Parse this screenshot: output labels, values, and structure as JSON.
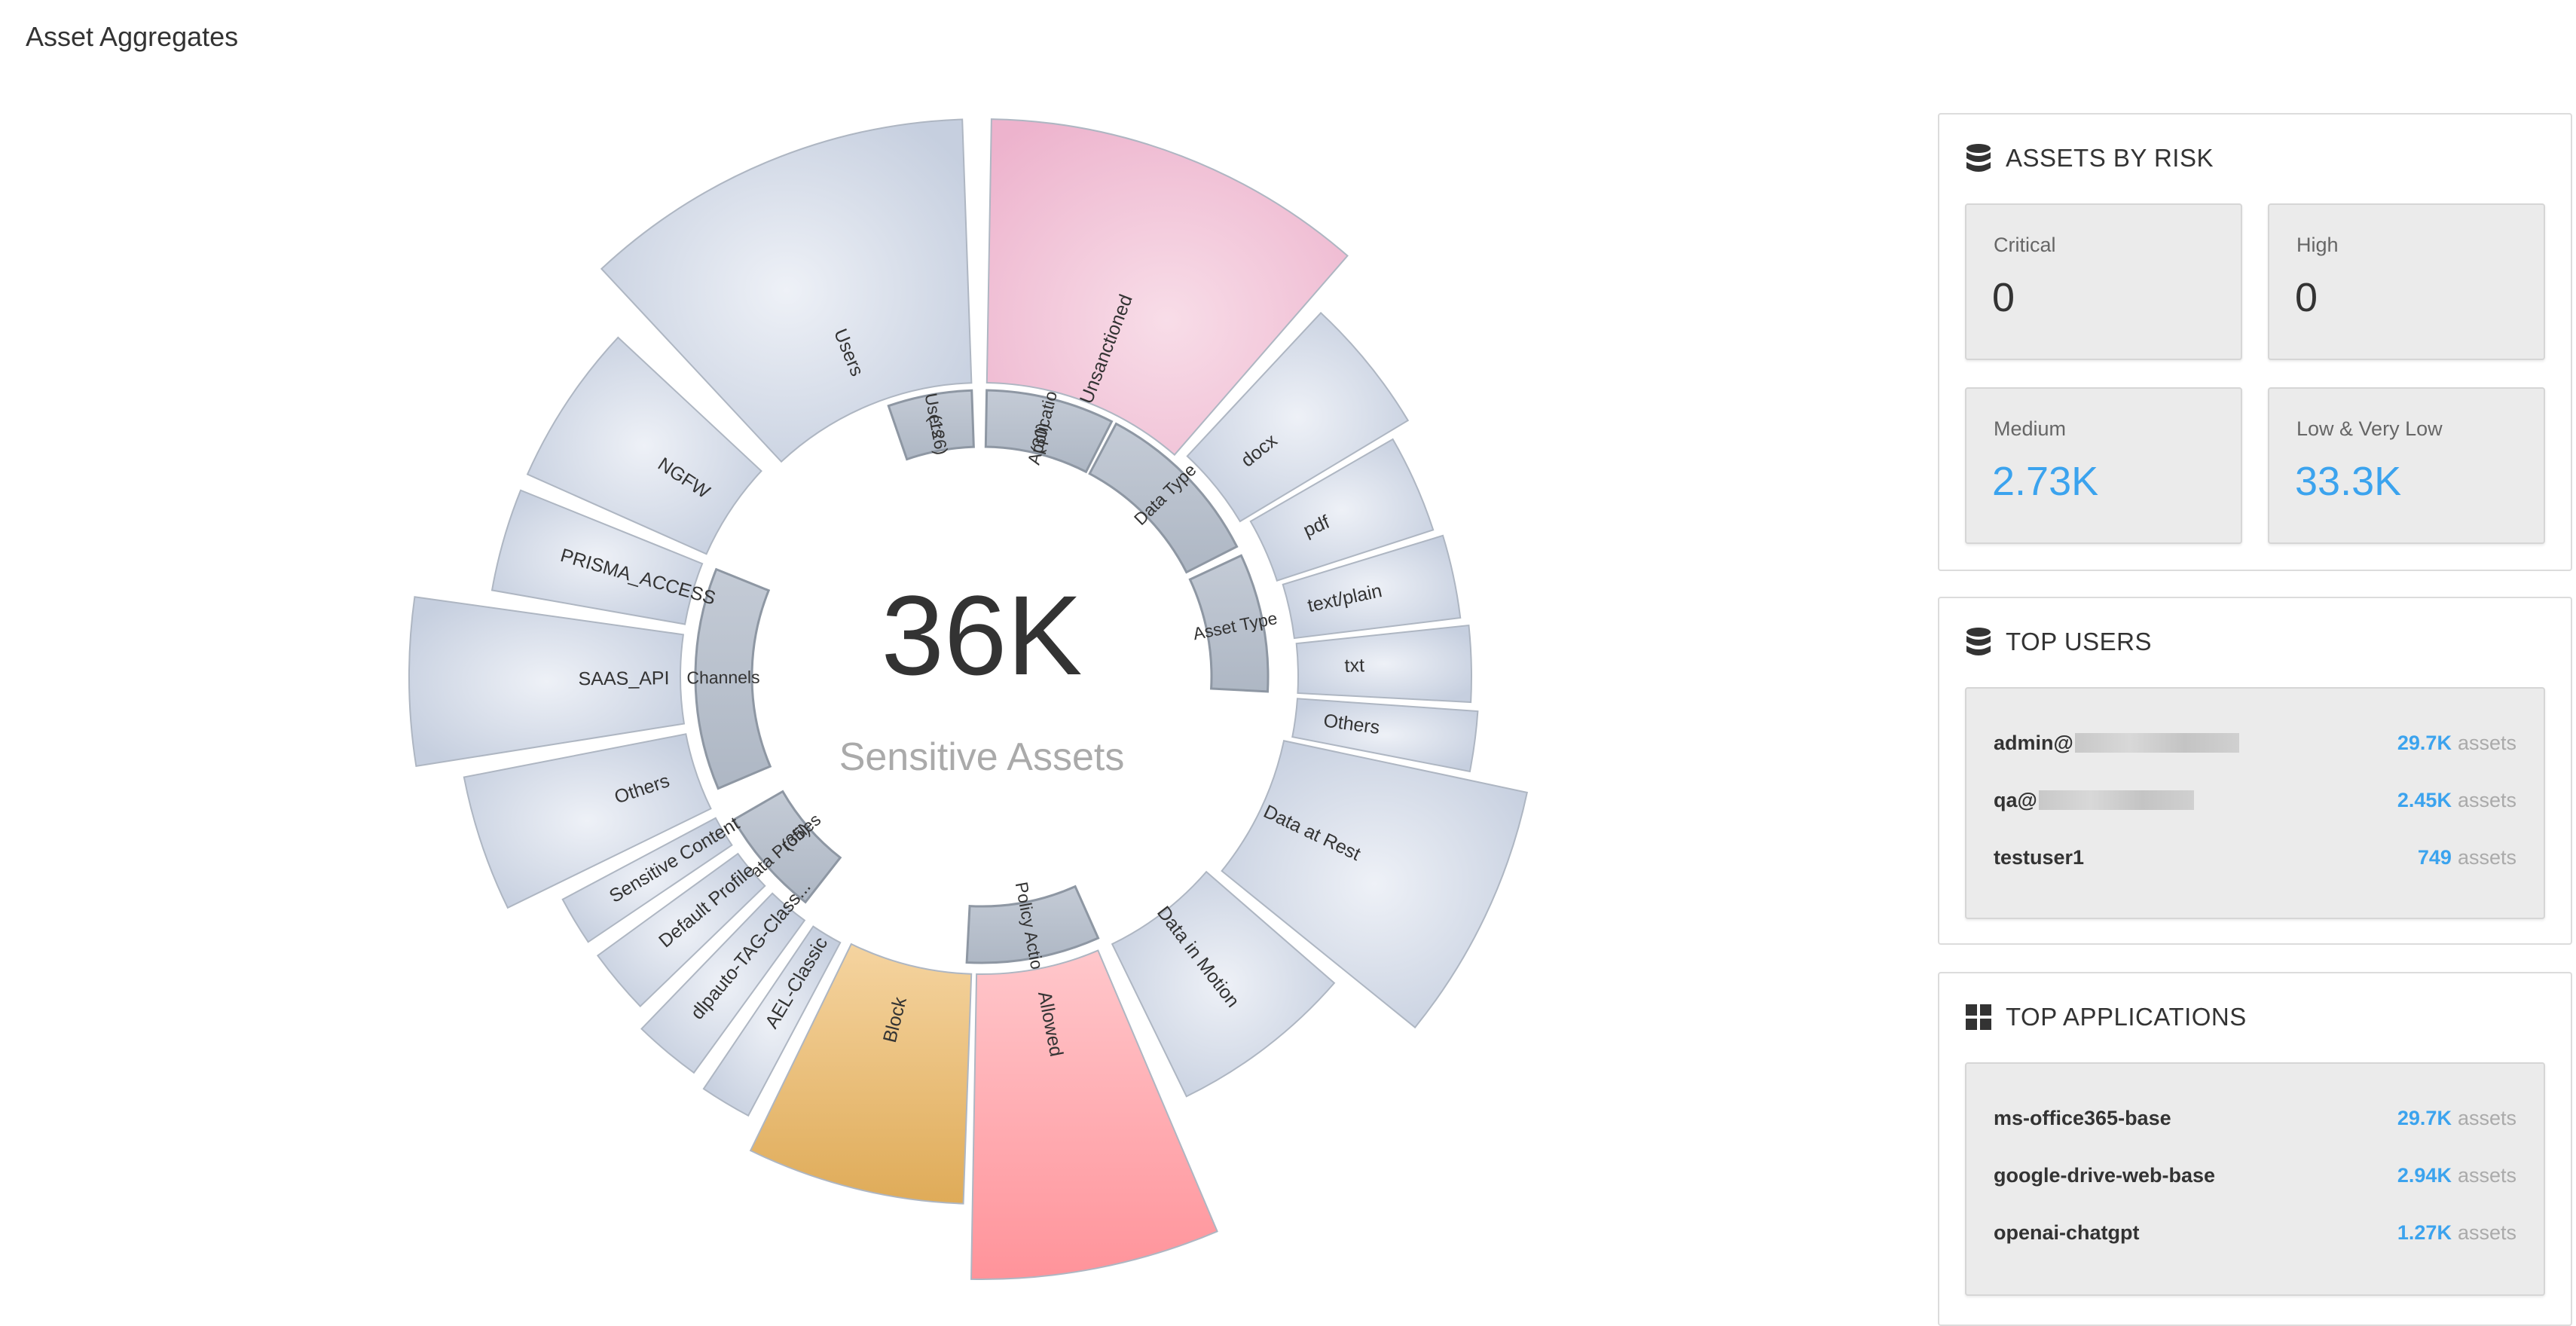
{
  "page": {
    "title": "Asset Aggregates"
  },
  "wheel": {
    "center": {
      "value": "36K",
      "label": "Sensitive Assets"
    },
    "inner": [
      {
        "label": "Users",
        "sub": "(126)"
      },
      {
        "label": "Applications",
        "sub": "(30)"
      },
      {
        "label": "Data Type",
        "sub": ""
      },
      {
        "label": "Asset Type",
        "sub": ""
      },
      {
        "label": "Policy Action",
        "sub": ""
      },
      {
        "label": "Data Profiles",
        "sub": "(35)"
      },
      {
        "label": "Channels",
        "sub": ""
      }
    ],
    "outer": [
      {
        "label": "Users",
        "color": "#cdd5e3"
      },
      {
        "label": "Unsanctioned",
        "color": "#efb8d1"
      },
      {
        "label": "docx",
        "color": "#cdd5e3"
      },
      {
        "label": "pdf",
        "color": "#cdd5e3"
      },
      {
        "label": "text/plain",
        "color": "#cdd5e3"
      },
      {
        "label": "txt",
        "color": "#cdd5e3"
      },
      {
        "label": "Others",
        "color": "#cdd5e3"
      },
      {
        "label": "Data at Rest",
        "color": "#cdd5e3"
      },
      {
        "label": "Data in Motion",
        "color": "#cdd5e3"
      },
      {
        "label": "Allowed",
        "color": "#ff9aa0"
      },
      {
        "label": "Block",
        "color": "#e2b062"
      },
      {
        "label": "AEL-Classic",
        "color": "#cdd5e3"
      },
      {
        "label": "dlpauto-TAG-Class...",
        "color": "#cdd5e3"
      },
      {
        "label": "Default Profile",
        "color": "#cdd5e3"
      },
      {
        "label": "Sensitive Content",
        "color": "#cdd5e3"
      },
      {
        "label": "Others",
        "color": "#cdd5e3"
      },
      {
        "label": "SAAS_API",
        "color": "#cdd5e3"
      },
      {
        "label": "PRISMA_ACCESS",
        "color": "#cdd5e3"
      },
      {
        "label": "NGFW",
        "color": "#cdd5e3"
      }
    ]
  },
  "risk": {
    "title": "ASSETS BY RISK",
    "critical_label": "Critical",
    "critical_value": "0",
    "high_label": "High",
    "high_value": "0",
    "medium_label": "Medium",
    "medium_value": "2.73K",
    "low_label": "Low & Very Low",
    "low_value": "33.3K"
  },
  "top_users": {
    "title": "TOP USERS",
    "rows": [
      {
        "name": "admin@",
        "count": "29.7K",
        "unit": "assets"
      },
      {
        "name": "qa@",
        "count": "2.45K",
        "unit": "assets"
      },
      {
        "name": "testuser1",
        "count": "749",
        "unit": "assets"
      }
    ]
  },
  "top_apps": {
    "title": "TOP APPLICATIONS",
    "rows": [
      {
        "name": "ms-office365-base",
        "count": "29.7K",
        "unit": "assets"
      },
      {
        "name": "google-drive-web-base",
        "count": "2.94K",
        "unit": "assets"
      },
      {
        "name": "openai-chatgpt",
        "count": "1.27K",
        "unit": "assets"
      }
    ]
  },
  "icons": {
    "panel_db": "database-icon",
    "panel_apps": "grid-icon"
  },
  "colors": {
    "accent_blue": "#3ba3ee",
    "ring_gray": "#b8c0cc",
    "segment_blue": "#cdd5e3"
  }
}
